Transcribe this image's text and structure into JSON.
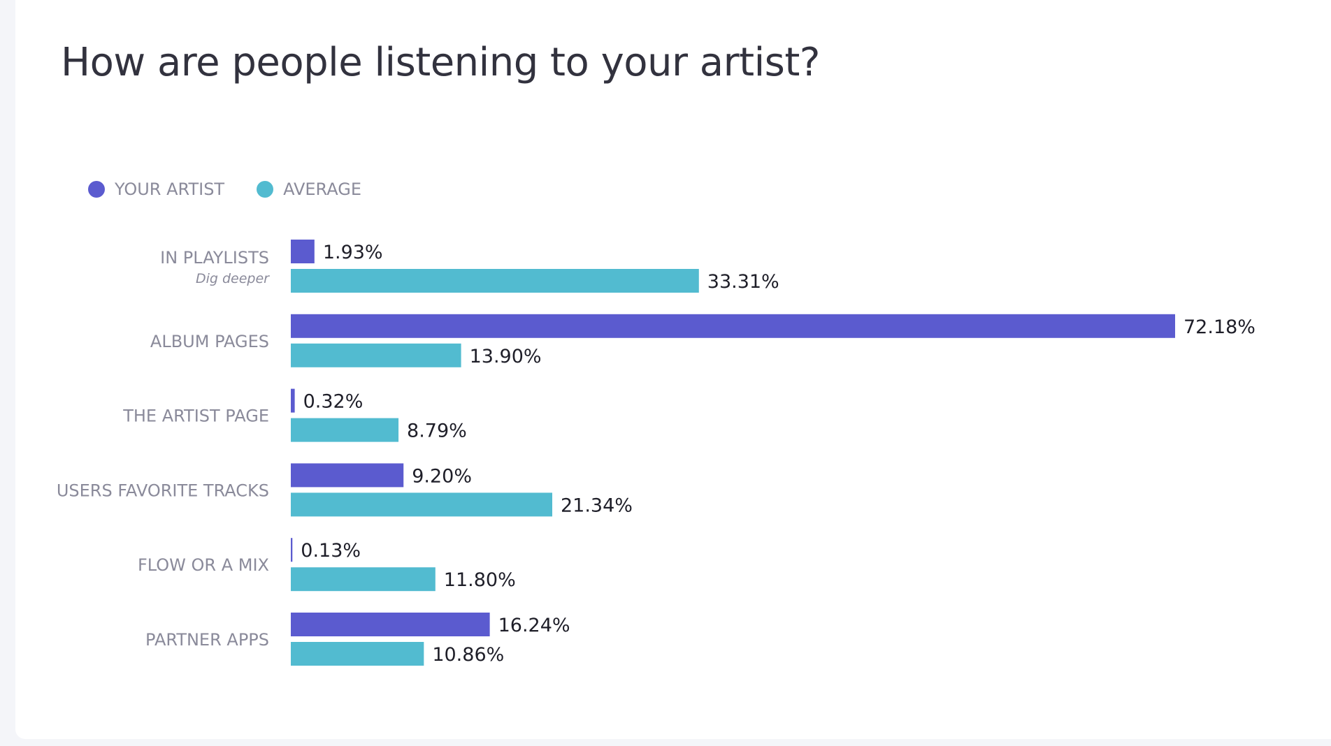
{
  "colors": {
    "your_artist": "#5b5bcf",
    "average": "#52bbd0"
  },
  "chart_data": {
    "type": "bar",
    "orientation": "horizontal",
    "title": "How are people listening to your artist?",
    "legend": [
      {
        "name": "YOUR ARTIST",
        "color": "#5b5bcf"
      },
      {
        "name": "AVERAGE",
        "color": "#52bbd0"
      }
    ],
    "legend_position": "top-left",
    "categories": [
      "IN PLAYLISTS",
      "ALBUM PAGES",
      "THE ARTIST PAGE",
      "USERS FAVORITE TRACKS",
      "FLOW OR A MIX",
      "PARTNER APPS"
    ],
    "category_sublabels": [
      "Dig deeper",
      "",
      "",
      "",
      "",
      ""
    ],
    "series": [
      {
        "name": "YOUR ARTIST",
        "values": [
          1.93,
          72.18,
          0.32,
          9.2,
          0.13,
          16.24
        ],
        "labels": [
          "1.93%",
          "72.18%",
          "0.32%",
          "9.20%",
          "0.13%",
          "16.24%"
        ]
      },
      {
        "name": "AVERAGE",
        "values": [
          33.31,
          13.9,
          8.79,
          21.34,
          11.8,
          10.86
        ],
        "labels": [
          "33.31%",
          "13.90%",
          "8.79%",
          "21.34%",
          "11.80%",
          "10.86%"
        ]
      }
    ],
    "xlim": [
      0,
      72.18
    ],
    "grid": false,
    "axes_visible": false
  }
}
